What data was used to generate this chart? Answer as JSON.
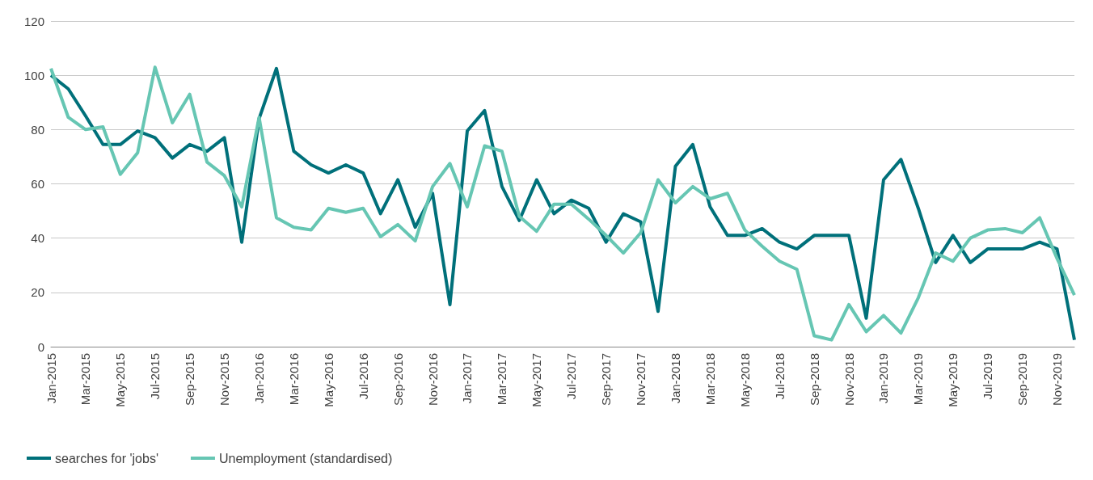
{
  "chart_data": {
    "type": "line",
    "categories": [
      "Jan-2015",
      null,
      "Mar-2015",
      null,
      "May-2015",
      null,
      "Jul-2015",
      null,
      "Sep-2015",
      null,
      "Nov-2015",
      null,
      "Jan-2016",
      null,
      "Mar-2016",
      null,
      "May-2016",
      null,
      "Jul-2016",
      null,
      "Sep-2016",
      null,
      "Nov-2016",
      null,
      "Jan-2017",
      null,
      "Mar-2017",
      null,
      "May-2017",
      null,
      "Jul-2017",
      null,
      "Sep-2017",
      null,
      "Nov-2017",
      null,
      "Jan-2018",
      null,
      "Mar-2018",
      null,
      "May-2018",
      null,
      "Jul-2018",
      null,
      "Sep-2018",
      null,
      "Nov-2018",
      null,
      "Jan-2019",
      null,
      "Mar-2019",
      null,
      "May-2019",
      null,
      "Jul-2019",
      null,
      "Sep-2019",
      null,
      "Nov-2019",
      null
    ],
    "series": [
      {
        "name": "searches for 'jobs'",
        "color": "#00707a",
        "values": [
          100,
          95,
          85,
          74.5,
          74.5,
          79.5,
          77,
          69.5,
          74.5,
          72,
          77,
          38.5,
          84,
          102.5,
          72,
          67,
          64,
          67,
          64,
          49,
          61.5,
          44,
          56.5,
          15.5,
          79.5,
          87,
          59,
          46.5,
          61.5,
          49,
          54,
          51,
          38.5,
          49,
          46,
          13,
          66.5,
          74.5,
          51.5,
          41,
          41,
          43.5,
          38.5,
          36,
          41,
          41,
          41,
          10.5,
          61.5,
          69,
          51,
          31,
          41,
          31,
          36,
          36,
          36,
          38.5,
          36,
          2.5
        ]
      },
      {
        "name": "Unemployment (standardised)",
        "color": "#66c6b3",
        "values": [
          102.5,
          84.5,
          80,
          81,
          63.5,
          71.5,
          103,
          82.5,
          93,
          68,
          63,
          51.5,
          84.5,
          47.5,
          44,
          43,
          51,
          49.5,
          51,
          40.5,
          45,
          39,
          59,
          67.5,
          51.5,
          74,
          72,
          48,
          42.5,
          52.5,
          52.5,
          47,
          41,
          34.5,
          42,
          61.5,
          53,
          59,
          54.5,
          56.5,
          43,
          37,
          31.5,
          28.5,
          4,
          2.5,
          15.5,
          5.5,
          11.5,
          5,
          18,
          34.5,
          31.5,
          40,
          43,
          43.5,
          42,
          47.5,
          32.5,
          19
        ]
      }
    ],
    "ylim": [
      0,
      120
    ],
    "yticks": [
      0,
      20,
      40,
      60,
      80,
      100,
      120
    ],
    "grid": "y",
    "legend": "bottom left",
    "marker": "none",
    "line_style": "solid"
  }
}
